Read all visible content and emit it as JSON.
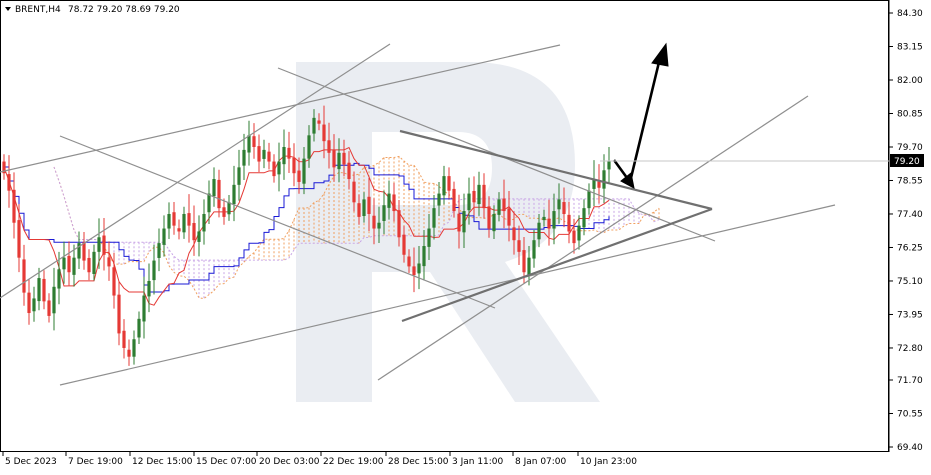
{
  "header": {
    "symbol": "BRENT,H4",
    "ohlc": "78.72 79.20 78.69 79.20",
    "menu_arrow_icon": "triangle-down-icon"
  },
  "current_price": {
    "label": "79.20",
    "value": 79.2,
    "background": "#000000",
    "text_color": "#ffffff"
  },
  "watermark": {
    "icon": "rounded-r-logo",
    "color": "#e9ecf1"
  },
  "colors": {
    "bull": "#2e7d32",
    "bear": "#e53935",
    "tenkan": "#e53935",
    "kijun": "#1a1ad6",
    "cloud_up": "#f0a060",
    "cloud_down": "#c9a6e6",
    "trendline": "#8c8c8c",
    "triangle": "#6f6f6f",
    "arrow": "#000000"
  },
  "chart_data": {
    "type": "candlestick",
    "title": "BRENT,H4",
    "ylim": [
      69.4,
      84.8
    ],
    "y_ticks": [
      "84.30",
      "83.15",
      "82.00",
      "80.85",
      "79.70",
      "78.55",
      "77.40",
      "76.25",
      "75.10",
      "73.95",
      "72.80",
      "71.70",
      "70.55",
      "69.40"
    ],
    "x_labels": [
      "5 Dec 2023",
      "7 Dec 19:00",
      "12 Dec 15:00",
      "15 Dec 07:00",
      "20 Dec 03:00",
      "22 Dec 19:00",
      "28 Dec 15:00",
      "3 Jan 11:00",
      "8 Jan 07:00",
      "10 Jan 23:00"
    ],
    "grid": false,
    "indicator": "Ichimoku Kinko Hyo",
    "last_close": 79.2,
    "closes": [
      78.8,
      78.2,
      77.1,
      75.9,
      74.7,
      74.0,
      74.5,
      75.2,
      74.4,
      73.9,
      74.9,
      75.5,
      75.9,
      75.4,
      75.9,
      76.4,
      75.8,
      75.4,
      76.1,
      76.6,
      76.0,
      75.6,
      74.6,
      73.3,
      72.8,
      72.5,
      73.1,
      73.8,
      74.6,
      75.1,
      75.8,
      76.4,
      76.9,
      77.4,
      77.0,
      76.8,
      77.4,
      77.0,
      76.5,
      76.8,
      77.4,
      78.1,
      78.6,
      77.6,
      77.3,
      77.8,
      78.4,
      79.0,
      79.6,
      80.1,
      79.7,
      79.2,
      79.6,
      79.2,
      78.7,
      79.2,
      79.7,
      79.3,
      78.8,
      78.5,
      79.3,
      80.1,
      80.7,
      80.5,
      79.9,
      79.5,
      79.0,
      79.5,
      79.1,
      78.6,
      77.8,
      77.3,
      77.9,
      77.4,
      76.9,
      77.1,
      77.7,
      78.1,
      77.5,
      76.6,
      76.0,
      75.6,
      75.3,
      75.7,
      76.3,
      76.9,
      77.6,
      78.1,
      78.7,
      78.2,
      77.5,
      76.8,
      77.5,
      78.1,
      77.8,
      78.4,
      77.6,
      76.9,
      77.4,
      77.9,
      77.5,
      77.0,
      76.5,
      76.1,
      75.4,
      75.9,
      76.5,
      77.1,
      77.3,
      76.9,
      77.5,
      77.9,
      77.4,
      76.8,
      76.4,
      77.0,
      77.6,
      78.2,
      78.6,
      78.3,
      78.9,
      79.2
    ],
    "annotations": {
      "forecast_arrow": {
        "from": [
          119,
          78.2
        ],
        "via": [
          122,
          77.9
        ],
        "to": [
          128,
          83.2
        ]
      }
    }
  }
}
